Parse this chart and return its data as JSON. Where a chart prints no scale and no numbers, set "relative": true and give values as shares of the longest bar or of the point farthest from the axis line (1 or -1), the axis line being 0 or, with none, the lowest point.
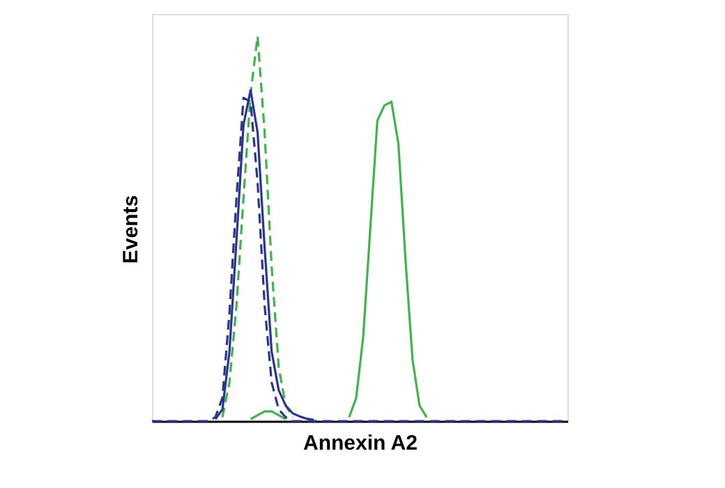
{
  "chart_data": {
    "type": "line",
    "relative": true,
    "xlabel": "Annexin A2",
    "ylabel": "Events",
    "tick_labels": false,
    "categories": [
      null,
      null,
      null,
      null,
      null,
      null,
      null,
      null,
      null,
      null,
      null,
      null,
      null,
      null,
      null,
      null,
      null,
      null,
      null,
      null,
      null,
      null,
      null,
      null,
      null,
      null,
      null,
      null,
      null,
      null,
      null,
      null,
      null,
      null,
      null,
      null,
      null,
      null,
      null,
      null,
      null,
      null,
      null,
      null,
      null,
      null,
      null,
      null,
      null,
      null,
      null,
      null,
      null,
      null,
      null,
      null,
      null,
      null,
      null,
      null
    ],
    "series": [
      {
        "color": "#3db54a",
        "line_style": "solid",
        "values": [
          null,
          null,
          null,
          null,
          null,
          null,
          null,
          null,
          null,
          null,
          null,
          null,
          null,
          null,
          0.005,
          0.015,
          0.025,
          0.025,
          0.015,
          0.005,
          null,
          null,
          null,
          null,
          null,
          null,
          null,
          null,
          0.01,
          0.06,
          0.22,
          0.5,
          0.78,
          0.82,
          0.83,
          0.72,
          0.42,
          0.16,
          0.04,
          0.01,
          null,
          null,
          null,
          null,
          null,
          null,
          null,
          null,
          null,
          null,
          null,
          null,
          null,
          null,
          null,
          null,
          null,
          null,
          null,
          null
        ]
      },
      {
        "color": "#3db54a",
        "line_style": "dashed",
        "values": [
          null,
          null,
          null,
          null,
          null,
          null,
          null,
          null,
          null,
          null,
          0.01,
          0.1,
          0.3,
          0.58,
          0.85,
          1,
          0.75,
          0.4,
          0.14,
          0.04,
          0.01,
          null,
          null,
          null,
          null,
          null,
          null,
          null,
          null,
          null,
          null,
          null,
          null,
          null,
          null,
          null,
          null,
          null,
          null,
          null,
          null,
          null,
          null,
          null,
          null,
          null,
          null,
          null,
          null,
          null,
          null,
          null,
          null,
          null,
          null,
          null,
          null,
          null,
          null,
          null
        ]
      },
      {
        "color": "#2b3590",
        "line_style": "solid",
        "values": [
          null,
          null,
          null,
          null,
          null,
          null,
          null,
          null,
          null,
          0.005,
          0.03,
          0.18,
          0.47,
          0.77,
          0.86,
          0.75,
          0.45,
          0.18,
          0.08,
          0.04,
          0.02,
          0.012,
          0.006,
          0.003,
          null,
          null,
          null,
          null,
          null,
          null,
          null,
          null,
          null,
          null,
          null,
          null,
          null,
          null,
          null,
          null,
          null,
          null,
          null,
          null,
          null,
          null,
          null,
          null,
          null,
          null,
          null,
          null,
          null,
          null,
          null,
          null,
          null,
          null,
          null,
          null
        ]
      },
      {
        "color": "#2b3590",
        "line_style": "dashed",
        "values": [
          0,
          0,
          0,
          0,
          0,
          0,
          0,
          0,
          0,
          0.01,
          0.06,
          0.28,
          0.58,
          0.84,
          0.83,
          0.62,
          0.3,
          0.1,
          0.03,
          0.01,
          0,
          0,
          0,
          0,
          0,
          0,
          0,
          0,
          0,
          0,
          0,
          0,
          0,
          0,
          0,
          0,
          0,
          0,
          0,
          0,
          0,
          0,
          0,
          0,
          0,
          0,
          0,
          0,
          0,
          0,
          0,
          0,
          0,
          0,
          0,
          0,
          0,
          0,
          0,
          0
        ]
      }
    ]
  }
}
